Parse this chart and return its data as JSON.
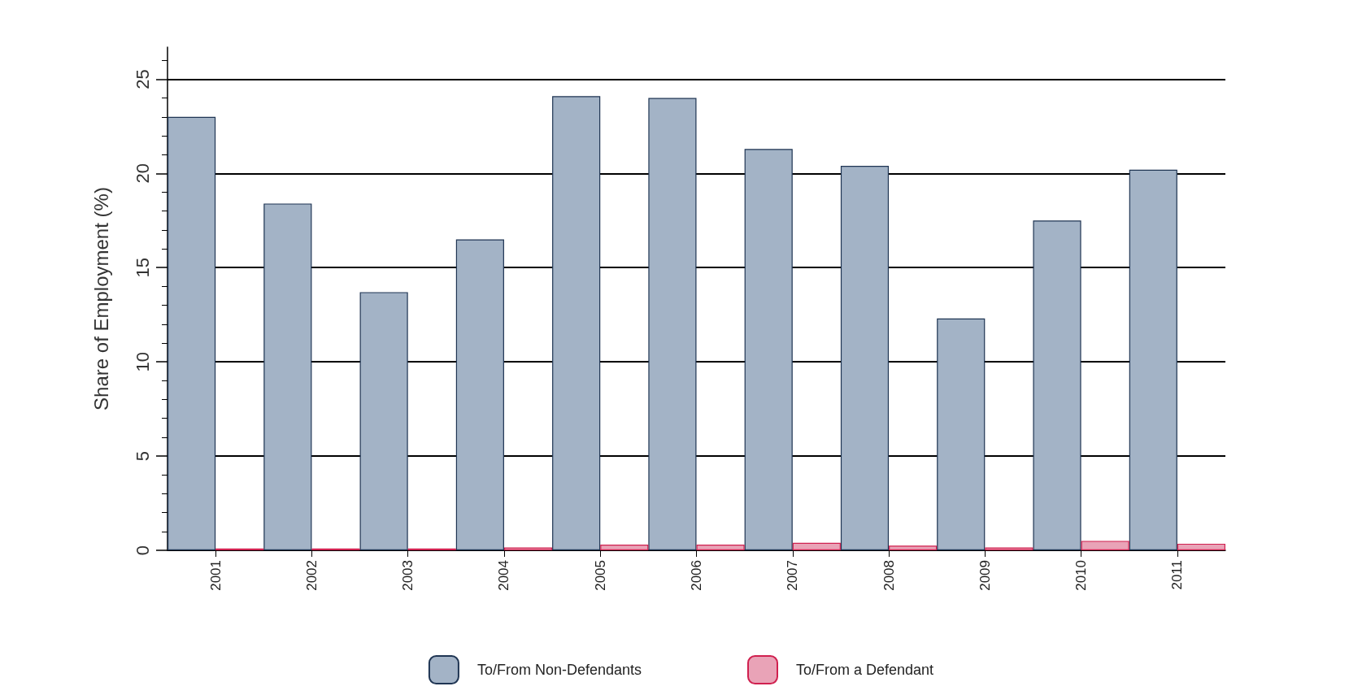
{
  "chart_data": {
    "type": "bar",
    "ylabel": "Share of Employment (%)",
    "categories": [
      "2001",
      "2002",
      "2003",
      "2004",
      "2005",
      "2006",
      "2007",
      "2008",
      "2009",
      "2010",
      "2011"
    ],
    "series": [
      {
        "name": "To/From Non-Defendants",
        "color": "#a3b3c6",
        "values": [
          23.0,
          18.4,
          13.7,
          16.5,
          24.1,
          24.0,
          21.3,
          20.4,
          12.3,
          17.5,
          20.2
        ]
      },
      {
        "name": "To/From a Defendant",
        "color": "#e9a3b7",
        "values": [
          0.1,
          0.1,
          0.1,
          0.15,
          0.3,
          0.3,
          0.4,
          0.25,
          0.15,
          0.5,
          0.35
        ]
      }
    ],
    "ylim": [
      0,
      26.7
    ],
    "yticks": [
      0,
      5,
      10,
      15,
      20,
      25
    ],
    "grid": "y",
    "legend": "bottom"
  }
}
